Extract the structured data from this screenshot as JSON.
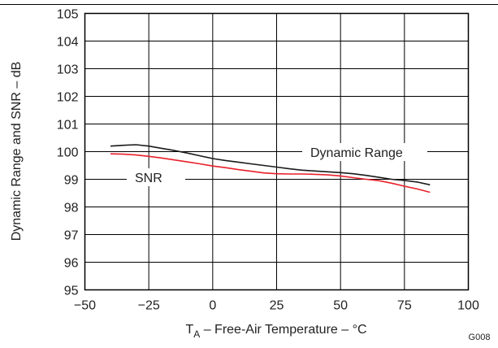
{
  "chart_data": {
    "type": "line",
    "xlabel_main": "T",
    "xlabel_sub": "A",
    "xlabel_rest": " – Free-Air Temperature – °C",
    "ylabel": "Dynamic Range and SNR – dB",
    "figure_id": "G008",
    "xlim": [
      -50,
      100
    ],
    "ylim": [
      95,
      105
    ],
    "xticks": [
      -50,
      -25,
      0,
      25,
      50,
      75,
      100
    ],
    "xtick_labels": [
      "−50",
      "−25",
      "0",
      "25",
      "50",
      "75",
      "100"
    ],
    "yticks": [
      95,
      96,
      97,
      98,
      99,
      100,
      101,
      102,
      103,
      104,
      105
    ],
    "ytick_labels": [
      "95",
      "96",
      "97",
      "98",
      "99",
      "100",
      "101",
      "102",
      "103",
      "104",
      "105"
    ],
    "grid": true,
    "series": [
      {
        "name": "Dynamic Range",
        "color": "#1a1a1a",
        "x": [
          -40,
          -35,
          -30,
          -25,
          -20,
          -15,
          -10,
          -5,
          0,
          5,
          10,
          15,
          20,
          25,
          30,
          35,
          40,
          45,
          50,
          55,
          60,
          65,
          70,
          75,
          80,
          85
        ],
        "y": [
          100.2,
          100.23,
          100.25,
          100.2,
          100.12,
          100.04,
          99.95,
          99.85,
          99.75,
          99.68,
          99.62,
          99.56,
          99.5,
          99.44,
          99.38,
          99.33,
          99.3,
          99.27,
          99.24,
          99.2,
          99.14,
          99.07,
          99.0,
          98.96,
          98.9,
          98.8
        ]
      },
      {
        "name": "SNR",
        "color": "#e8202a",
        "x": [
          -40,
          -35,
          -30,
          -25,
          -20,
          -15,
          -10,
          -5,
          0,
          5,
          10,
          15,
          20,
          25,
          30,
          35,
          40,
          45,
          50,
          55,
          60,
          65,
          70,
          75,
          80,
          85
        ],
        "y": [
          99.92,
          99.91,
          99.88,
          99.83,
          99.77,
          99.7,
          99.63,
          99.56,
          99.48,
          99.42,
          99.35,
          99.29,
          99.23,
          99.2,
          99.19,
          99.19,
          99.18,
          99.16,
          99.12,
          99.06,
          99.0,
          98.95,
          98.86,
          98.75,
          98.65,
          98.53
        ]
      }
    ]
  }
}
